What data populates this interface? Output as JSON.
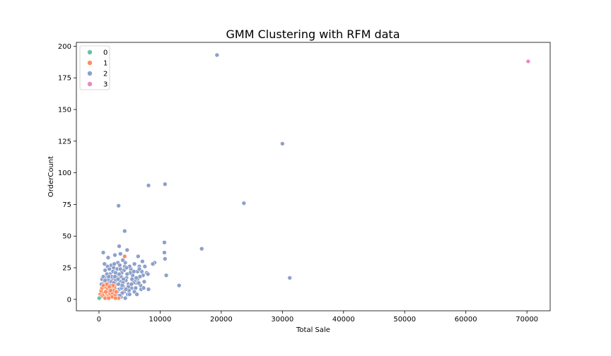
{
  "chart_data": {
    "type": "scatter",
    "title": "GMM Clustering with RFM data",
    "xlabel": "Total Sale",
    "ylabel": "OrderCount",
    "xlim": [
      -3700,
      73800
    ],
    "ylim": [
      -9,
      203
    ],
    "xticks": [
      0,
      10000,
      20000,
      30000,
      40000,
      50000,
      60000,
      70000
    ],
    "yticks": [
      0,
      25,
      50,
      75,
      100,
      125,
      150,
      175,
      200
    ],
    "grid": false,
    "legend_position": "top-left",
    "series": [
      {
        "name": "0",
        "color": "#66c2a5",
        "points": [
          [
            0,
            1
          ],
          [
            0,
            1
          ],
          [
            60,
            1
          ],
          [
            30,
            1
          ]
        ]
      },
      {
        "name": "1",
        "color": "#fc8d62",
        "points": [
          [
            4200,
            34
          ],
          [
            3200,
            1
          ],
          [
            200,
            4
          ],
          [
            350,
            7
          ],
          [
            500,
            9
          ],
          [
            800,
            5
          ],
          [
            1000,
            10
          ],
          [
            1200,
            3
          ],
          [
            1400,
            8
          ],
          [
            1600,
            6
          ],
          [
            1800,
            4
          ],
          [
            2000,
            9
          ],
          [
            2200,
            5
          ],
          [
            2400,
            7
          ],
          [
            2600,
            3
          ],
          [
            1500,
            2
          ],
          [
            900,
            2
          ],
          [
            700,
            11
          ],
          [
            2800,
            6
          ],
          [
            1100,
            6
          ],
          [
            1300,
            12
          ],
          [
            1700,
            10
          ],
          [
            2100,
            2
          ],
          [
            600,
            3
          ],
          [
            2500,
            10
          ],
          [
            300,
            2
          ],
          [
            1900,
            7
          ],
          [
            2300,
            11
          ],
          [
            1000,
            1
          ],
          [
            1600,
            1
          ],
          [
            2700,
            1
          ]
        ]
      },
      {
        "name": "2",
        "color": "#8da0cb",
        "points": [
          [
            19300,
            193
          ],
          [
            30000,
            123
          ],
          [
            23700,
            76
          ],
          [
            10800,
            91
          ],
          [
            8100,
            90
          ],
          [
            3200,
            74
          ],
          [
            4200,
            54
          ],
          [
            10700,
            45
          ],
          [
            16800,
            40
          ],
          [
            10700,
            37
          ],
          [
            3300,
            42
          ],
          [
            4600,
            39
          ],
          [
            10800,
            32
          ],
          [
            31200,
            17
          ],
          [
            13100,
            11
          ],
          [
            11000,
            19
          ],
          [
            8100,
            8
          ],
          [
            9100,
            29
          ],
          [
            8800,
            28
          ],
          [
            7800,
            21
          ],
          [
            8000,
            20
          ],
          [
            700,
            37
          ],
          [
            1500,
            33
          ],
          [
            2600,
            35
          ],
          [
            3500,
            36
          ],
          [
            5800,
            28
          ],
          [
            6400,
            34
          ],
          [
            7100,
            30
          ],
          [
            6600,
            26
          ],
          [
            7500,
            26
          ],
          [
            7000,
            22
          ],
          [
            6300,
            16
          ],
          [
            5200,
            24
          ],
          [
            4100,
            23
          ],
          [
            2000,
            27
          ],
          [
            3100,
            29
          ],
          [
            1000,
            23
          ],
          [
            1800,
            20
          ],
          [
            2400,
            25
          ],
          [
            2900,
            19
          ],
          [
            3700,
            21
          ],
          [
            4500,
            17
          ],
          [
            5500,
            19
          ],
          [
            6100,
            13
          ],
          [
            6800,
            11
          ],
          [
            5700,
            8
          ],
          [
            4800,
            12
          ],
          [
            4000,
            10
          ],
          [
            3500,
            14
          ],
          [
            2800,
            12
          ],
          [
            2200,
            16
          ],
          [
            1600,
            14
          ],
          [
            1200,
            18
          ],
          [
            800,
            13
          ],
          [
            500,
            16
          ],
          [
            1900,
            11
          ],
          [
            2600,
            9
          ],
          [
            3300,
            8
          ],
          [
            4100,
            6
          ],
          [
            4700,
            4
          ],
          [
            5300,
            9
          ],
          [
            5900,
            15
          ],
          [
            6300,
            22
          ],
          [
            5000,
            26
          ],
          [
            4300,
            29
          ],
          [
            3900,
            31
          ],
          [
            3000,
            24
          ],
          [
            2300,
            22
          ],
          [
            1400,
            26
          ],
          [
            900,
            28
          ],
          [
            6000,
            9
          ],
          [
            6500,
            13
          ],
          [
            7200,
            19
          ],
          [
            4400,
            15
          ],
          [
            3600,
            18
          ],
          [
            3200,
            12
          ],
          [
            2700,
            15
          ],
          [
            2000,
            14
          ],
          [
            1500,
            16
          ],
          [
            1100,
            12
          ],
          [
            1700,
            24
          ],
          [
            2500,
            28
          ],
          [
            3400,
            27
          ],
          [
            4200,
            26
          ],
          [
            5100,
            21
          ],
          [
            5600,
            13
          ],
          [
            6700,
            18
          ],
          [
            4900,
            7
          ],
          [
            3800,
            5
          ],
          [
            3000,
            6
          ],
          [
            2100,
            18
          ],
          [
            1300,
            20
          ],
          [
            700,
            18
          ],
          [
            400,
            12
          ],
          [
            5400,
            16
          ],
          [
            4600,
            20
          ],
          [
            3700,
            9
          ],
          [
            2900,
            3
          ],
          [
            3600,
            2
          ],
          [
            4300,
            1
          ],
          [
            5000,
            4
          ],
          [
            5800,
            6
          ],
          [
            6200,
            4
          ],
          [
            6900,
            8
          ],
          [
            7400,
            14
          ],
          [
            4000,
            16
          ],
          [
            3300,
            20
          ],
          [
            2400,
            13
          ],
          [
            1800,
            8
          ],
          [
            1000,
            15
          ],
          [
            2700,
            21
          ],
          [
            3500,
            24
          ],
          [
            4800,
            10
          ],
          [
            5300,
            12
          ],
          [
            6100,
            17
          ],
          [
            4500,
            25
          ],
          [
            3900,
            13
          ],
          [
            2200,
            10
          ],
          [
            1600,
            18
          ],
          [
            3100,
            16
          ],
          [
            3800,
            11
          ],
          [
            4400,
            8
          ],
          [
            5700,
            22
          ],
          [
            6600,
            24
          ],
          [
            7300,
            9
          ],
          [
            1300,
            9
          ],
          [
            2000,
            6
          ],
          [
            2600,
            18
          ],
          [
            3400,
            3
          ]
        ]
      },
      {
        "name": "3",
        "color": "#e78ac3",
        "points": [
          [
            70200,
            188
          ]
        ]
      }
    ]
  }
}
